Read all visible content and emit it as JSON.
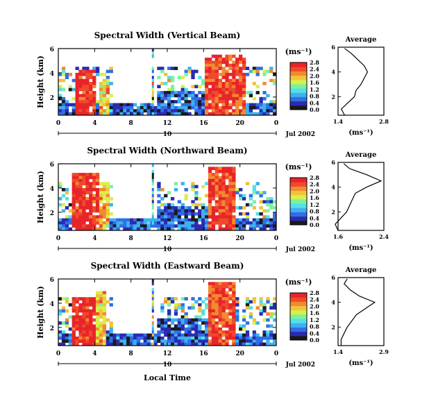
{
  "figure": {
    "x_axis_label": "Local Time",
    "date_label": "Jul 2002",
    "day_marker": "10"
  },
  "colormap": [
    "#1a1a1a",
    "#2b2bb0",
    "#2f6fe6",
    "#3fb0f0",
    "#55e0e6",
    "#7af2a0",
    "#d8f04a",
    "#f2c23a",
    "#f28a30",
    "#f04a2a",
    "#e8242a"
  ],
  "chart_data": [
    {
      "type": "heatmap",
      "title": "Spectral Width (Vertical Beam)",
      "ylabel": "Height (km)",
      "unit_label": "(ms⁻¹)",
      "x_ticks": [
        "0",
        "4",
        "8",
        "12",
        "16",
        "20",
        "0"
      ],
      "y_ticks": [
        "2",
        "4",
        "6"
      ],
      "ylim": [
        0.5,
        6
      ],
      "colorbar_ticks": [
        "0.0",
        "0.4",
        "0.8",
        "1.2",
        "1.6",
        "2.0",
        "2.4",
        "2.8"
      ],
      "avg": {
        "title": "Average",
        "xlabel": "(ms⁻¹)",
        "x_ticks": [
          "1.4",
          "2.8"
        ],
        "y_ticks": [
          "2",
          "4",
          "6"
        ],
        "profile": [
          [
            0.5,
            1.6
          ],
          [
            1.0,
            1.5
          ],
          [
            1.5,
            1.7
          ],
          [
            2.0,
            1.9
          ],
          [
            2.5,
            1.95
          ],
          [
            3.0,
            2.1
          ],
          [
            3.5,
            2.2
          ],
          [
            4.0,
            2.3
          ],
          [
            4.5,
            2.2
          ],
          [
            5.0,
            2.0
          ],
          [
            5.5,
            1.8
          ],
          [
            5.9,
            1.6
          ]
        ]
      },
      "regions": [
        {
          "x": [
            0,
            24
          ],
          "y": [
            0.5,
            1.5
          ],
          "v": 0.5
        },
        {
          "x": [
            1.8,
            4.2
          ],
          "y": [
            0.5,
            4.2
          ],
          "v": 2.8
        },
        {
          "x": [
            4.5,
            5.5
          ],
          "y": [
            0.5,
            3.5
          ],
          "v": 2.0
        },
        {
          "x": [
            11,
            18
          ],
          "y": [
            0.5,
            2.5
          ],
          "v": 0.4
        },
        {
          "x": [
            16,
            20.5
          ],
          "y": [
            0.5,
            5.5
          ],
          "v": 2.6
        }
      ]
    },
    {
      "type": "heatmap",
      "title": "Spectral Width (Northward Beam)",
      "ylabel": "Height (km)",
      "unit_label": "(ms⁻¹)",
      "x_ticks": [
        "0",
        "4",
        "8",
        "12",
        "16",
        "20",
        "0"
      ],
      "y_ticks": [
        "2",
        "4",
        "6"
      ],
      "ylim": [
        0.5,
        6
      ],
      "colorbar_ticks": [
        "0.0",
        "0.4",
        "0.8",
        "1.2",
        "1.6",
        "2.0",
        "2.4",
        "2.8"
      ],
      "avg": {
        "title": "Average",
        "xlabel": "(ms⁻¹)",
        "x_ticks": [
          "1.6",
          "2.4"
        ],
        "y_ticks": [
          "2",
          "4",
          "6"
        ],
        "profile": [
          [
            0.5,
            1.6
          ],
          [
            1.0,
            1.55
          ],
          [
            1.5,
            1.65
          ],
          [
            2.0,
            1.75
          ],
          [
            2.5,
            1.8
          ],
          [
            3.0,
            1.85
          ],
          [
            3.5,
            1.9
          ],
          [
            4.0,
            2.1
          ],
          [
            4.5,
            2.35
          ],
          [
            5.0,
            2.1
          ],
          [
            5.5,
            1.8
          ],
          [
            5.9,
            1.7
          ]
        ]
      },
      "regions": [
        {
          "x": [
            0,
            24
          ],
          "y": [
            0.5,
            1.5
          ],
          "v": 0.5
        },
        {
          "x": [
            1.5,
            4.5
          ],
          "y": [
            0.5,
            5.2
          ],
          "v": 2.8
        },
        {
          "x": [
            4.6,
            5.6
          ],
          "y": [
            0.5,
            4.5
          ],
          "v": 2.0
        },
        {
          "x": [
            11,
            18
          ],
          "y": [
            0.5,
            2.5
          ],
          "v": 0.4
        },
        {
          "x": [
            16.5,
            19.5
          ],
          "y": [
            0.5,
            5.8
          ],
          "v": 2.6
        }
      ]
    },
    {
      "type": "heatmap",
      "title": "Spectral Width (Eastward Beam)",
      "ylabel": "Height (km)",
      "unit_label": "(ms⁻¹)",
      "x_ticks": [
        "0",
        "4",
        "8",
        "12",
        "16",
        "20",
        "0"
      ],
      "y_ticks": [
        "2",
        "4",
        "6"
      ],
      "ylim": [
        0.5,
        6
      ],
      "colorbar_ticks": [
        "0.0",
        "0.4",
        "0.8",
        "1.2",
        "1.6",
        "2.0",
        "2.4",
        "2.8"
      ],
      "avg": {
        "title": "Average",
        "xlabel": "(ms⁻¹)",
        "x_ticks": [
          "1.4",
          "2.9"
        ],
        "y_ticks": [
          "2",
          "4",
          "6"
        ],
        "profile": [
          [
            0.5,
            1.5
          ],
          [
            1.0,
            1.5
          ],
          [
            1.5,
            1.6
          ],
          [
            2.0,
            1.7
          ],
          [
            2.5,
            1.85
          ],
          [
            3.0,
            2.0
          ],
          [
            3.5,
            2.3
          ],
          [
            4.0,
            2.6
          ],
          [
            4.5,
            2.1
          ],
          [
            5.0,
            1.8
          ],
          [
            5.5,
            1.6
          ],
          [
            5.9,
            1.7
          ]
        ]
      },
      "regions": [
        {
          "x": [
            0,
            24
          ],
          "y": [
            0.5,
            1.5
          ],
          "v": 0.5
        },
        {
          "x": [
            1.5,
            4.0
          ],
          "y": [
            0.5,
            4.5
          ],
          "v": 2.8
        },
        {
          "x": [
            4.2,
            5.2
          ],
          "y": [
            0.5,
            5.0
          ],
          "v": 2.0
        },
        {
          "x": [
            11,
            18
          ],
          "y": [
            0.5,
            2.8
          ],
          "v": 0.4
        },
        {
          "x": [
            16.5,
            19.5
          ],
          "y": [
            0.5,
            5.8
          ],
          "v": 2.6
        }
      ]
    }
  ]
}
